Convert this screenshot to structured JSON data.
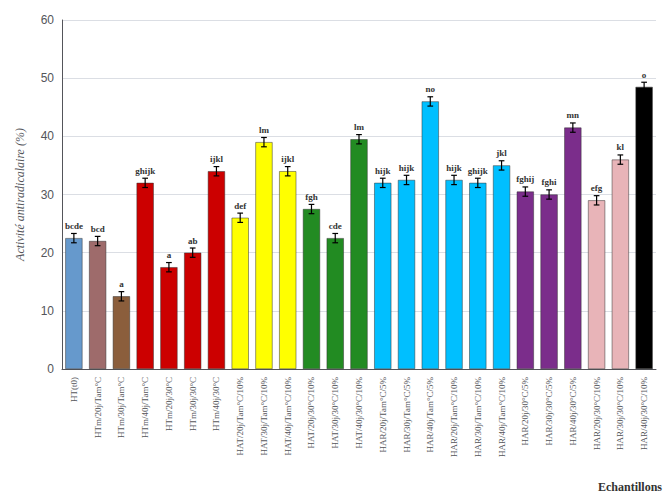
{
  "chart_data": {
    "type": "bar",
    "categories": [
      "HT(t0)",
      "HTm/20j/Tam°C",
      "HTm/30j/Tam°C",
      "HTm/40j/Tam°C",
      "HTm/20j/30°C",
      "HTm/30j/30°C",
      "HTm/40j/30°C",
      "HAT/20j/Tam°C/10%",
      "HAT/30j/Tam°C/10%",
      "HAT/40j/Tam°C/10%",
      "HAT/20j/30°C/10%",
      "HAT/30j/30°C/10%",
      "HAT/40j/30°C/10%",
      "HAR/20j/Tam°C/5%",
      "HAR/30j/Tam°C/5%",
      "HAR/40j/Tam°C/5%",
      "HAR/20j/Tam°C/10%",
      "HAR/30j/Tam°C/10%",
      "HAR/40j/Tam°C/10%",
      "HAR/20j/30°C/5%",
      "HAR/30j/30°C/5%",
      "HAR/40j/30°C/5%",
      "HAR/20j/30°C/10%",
      "HAR/30j/30°C/10%",
      "HAR/40j/30°C/10%"
    ],
    "values": [
      22.5,
      22.0,
      12.5,
      32.0,
      17.5,
      20.0,
      34.0,
      26.0,
      39.0,
      34.0,
      27.5,
      22.5,
      39.5,
      32.0,
      32.5,
      46.0,
      32.5,
      32.0,
      35.0,
      30.5,
      30.0,
      41.5,
      29.0,
      36.0,
      48.5
    ],
    "errors": [
      0.8,
      0.8,
      0.8,
      0.8,
      0.8,
      0.8,
      0.8,
      0.8,
      0.8,
      0.8,
      0.8,
      0.8,
      0.8,
      0.8,
      0.8,
      0.8,
      0.8,
      0.8,
      0.8,
      0.8,
      0.8,
      0.8,
      0.8,
      0.8,
      0.8
    ],
    "colors": [
      "#6699CC",
      "#9E6B6B",
      "#8B5E3C",
      "#CC0000",
      "#CC0000",
      "#CC0000",
      "#CC0000",
      "#FFFF00",
      "#FFFF00",
      "#FFFF00",
      "#228B22",
      "#228B22",
      "#228B22",
      "#00BFFF",
      "#00BFFF",
      "#00BFFF",
      "#00BFFF",
      "#00BFFF",
      "#00BFFF",
      "#7B2D8B",
      "#7B2D8B",
      "#7B2D8B",
      "#E8B4B8",
      "#E8B4B8",
      "#000000"
    ],
    "annotations": [
      "bcde",
      "bcd",
      "a",
      "ghijk",
      "a",
      "ab",
      "ijkl",
      "def",
      "lm",
      "ijkl",
      "fgh",
      "cde",
      "lm",
      "hijk",
      "hijk",
      "no",
      "hijk",
      "ghijk",
      "jkl",
      "fghij",
      "fghi",
      "mn",
      "efg",
      "kl",
      "o"
    ],
    "ylabel": "Activité antiradicalaire (%)",
    "xlabel": "Echantillons",
    "ylim": [
      0,
      60
    ],
    "yticks": [
      0,
      10,
      20,
      30,
      40,
      50,
      60
    ],
    "grid": true
  }
}
